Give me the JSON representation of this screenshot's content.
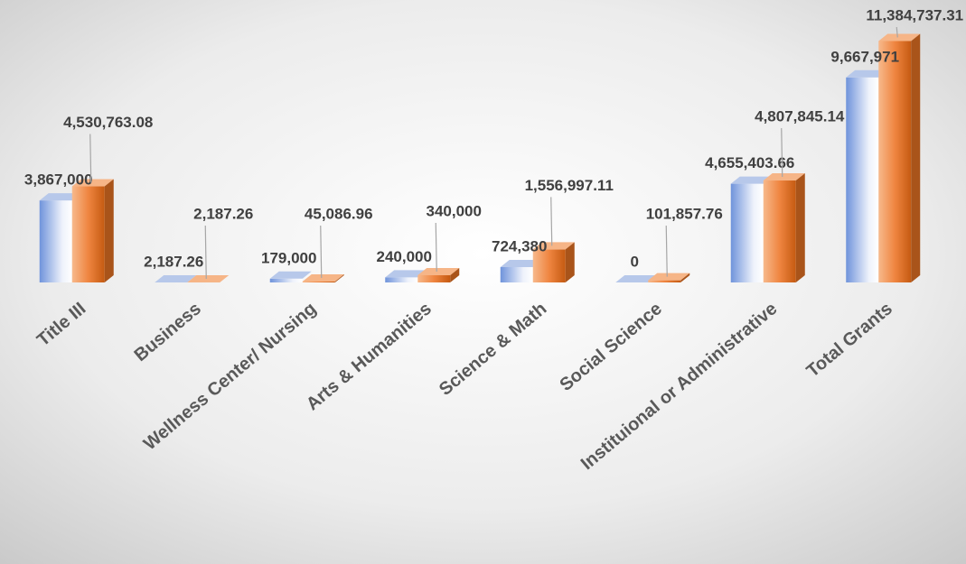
{
  "chart_data": {
    "type": "bar3d",
    "categories": [
      "Title III",
      "Business",
      "Wellness Center/ Nursing",
      "Arts & Humanities",
      "Science & Math",
      "Social Science",
      "Instituional or Administrative",
      "Total Grants"
    ],
    "ylim": [
      0,
      12000000
    ],
    "series": [
      {
        "color": "#4f7bd0",
        "values": [
          3867000,
          2187.26,
          179000,
          240000,
          724380,
          0,
          4655403.66,
          9667971
        ],
        "value_labels": [
          "3,867,000",
          "2,187.26",
          "179,000",
          "240,000",
          "724,380",
          "0",
          "4,655,403.66",
          "9,667,971"
        ]
      },
      {
        "color": "#ed7d31",
        "values": [
          4530763.08,
          2187.26,
          45086.96,
          340000,
          1556997.11,
          101857.76,
          4807845.14,
          11384737.31
        ],
        "value_labels": [
          "4,530,763.08",
          "2,187.26",
          "45,086.96",
          "340,000",
          "1,556,997.11",
          "101,857.76",
          "4,807,845.14",
          "11,384,737.31"
        ]
      }
    ]
  }
}
